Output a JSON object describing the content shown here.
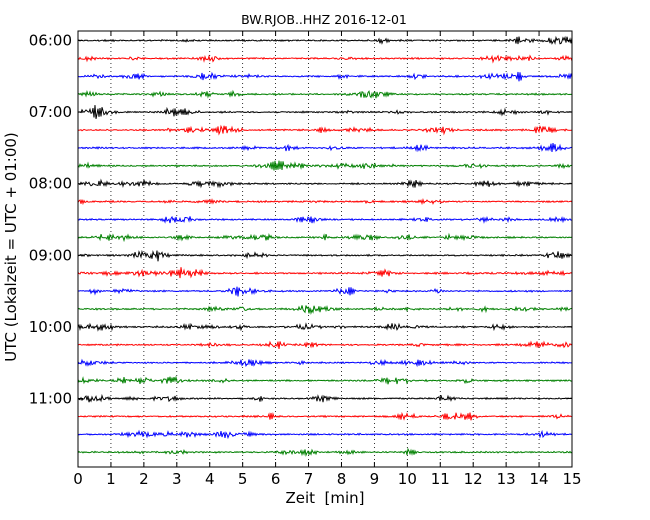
{
  "chart_data": {
    "type": "line",
    "title": "BW.RJOB..HHZ 2016-12-01",
    "xlabel": "Zeit  [min]",
    "ylabel": "UTC (Lokalzeit = UTC + 01:00)",
    "xlim": [
      0,
      15
    ],
    "x_ticks": [
      "0",
      "1",
      "2",
      "3",
      "4",
      "5",
      "6",
      "7",
      "8",
      "9",
      "10",
      "11",
      "12",
      "13",
      "14",
      "15"
    ],
    "y_tick_labels": [
      "06:00",
      "07:00",
      "08:00",
      "09:00",
      "10:00",
      "11:00"
    ],
    "trace_start_times": [
      "06:00",
      "06:15",
      "06:30",
      "06:45",
      "07:00",
      "07:15",
      "07:30",
      "07:45",
      "08:00",
      "08:15",
      "08:30",
      "08:45",
      "09:00",
      "09:15",
      "09:30",
      "09:45",
      "10:00",
      "10:15",
      "10:30",
      "10:45",
      "11:00",
      "11:15",
      "11:30",
      "11:45"
    ],
    "trace_colors": [
      "#000000",
      "#ff0000",
      "#0000ff",
      "#008000"
    ],
    "grid": {
      "x": "dotted",
      "y": "none"
    }
  }
}
